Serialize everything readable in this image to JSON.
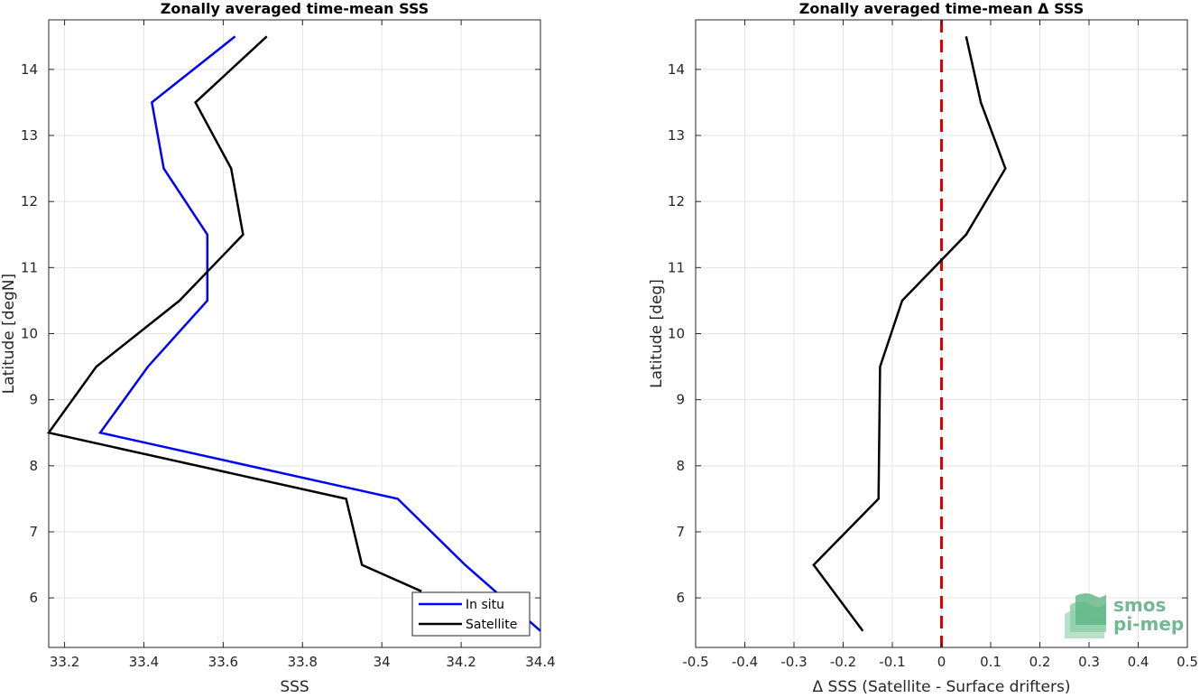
{
  "chart_data": [
    {
      "type": "line",
      "title": "Zonally averaged time-mean SSS",
      "xlabel": "SSS",
      "ylabel": "Latitude [degN]",
      "xlim": [
        33.16,
        34.4
      ],
      "ylim": [
        5.25,
        14.75
      ],
      "xticks": [
        33.2,
        33.4,
        33.6,
        33.8,
        34.0,
        34.2,
        34.4
      ],
      "xtick_labels": [
        "33.2",
        "33.4",
        "33.6",
        "33.8",
        "34",
        "34.2",
        "34.4"
      ],
      "yticks": [
        6,
        7,
        8,
        9,
        10,
        11,
        12,
        13,
        14
      ],
      "ytick_labels": [
        "6",
        "7",
        "8",
        "9",
        "10",
        "11",
        "12",
        "13",
        "14"
      ],
      "grid": true,
      "legend": "bottom-right",
      "series": [
        {
          "name": "In situ",
          "color": "#0000ff",
          "points": [
            [
              33.63,
              14.5
            ],
            [
              33.42,
              13.5
            ],
            [
              33.45,
              12.5
            ],
            [
              33.56,
              11.5
            ],
            [
              33.56,
              10.5
            ],
            [
              33.41,
              9.5
            ],
            [
              33.29,
              8.5
            ],
            [
              34.04,
              7.5
            ],
            [
              34.21,
              6.5
            ],
            [
              34.4,
              5.5
            ]
          ]
        },
        {
          "name": "Satellite",
          "color": "#000000",
          "points": [
            [
              33.71,
              14.5
            ],
            [
              33.53,
              13.5
            ],
            [
              33.62,
              12.5
            ],
            [
              33.65,
              11.5
            ],
            [
              33.49,
              10.5
            ],
            [
              33.28,
              9.5
            ],
            [
              33.16,
              8.5
            ],
            [
              33.91,
              7.5
            ],
            [
              33.95,
              6.5
            ],
            [
              34.1,
              6.1
            ]
          ]
        }
      ]
    },
    {
      "type": "line",
      "title": "Zonally averaged time-mean Δ SSS",
      "xlabel": "Δ SSS (Satellite - Surface drifters)",
      "ylabel": "Latitude [deg]",
      "xlim": [
        -0.5,
        0.5
      ],
      "ylim": [
        5.25,
        14.75
      ],
      "xticks": [
        -0.5,
        -0.4,
        -0.3,
        -0.2,
        -0.1,
        0,
        0.1,
        0.2,
        0.3,
        0.4,
        0.5
      ],
      "xtick_labels": [
        "-0.5",
        "-0.4",
        "-0.3",
        "-0.2",
        "-0.1",
        "0",
        "0.1",
        "0.2",
        "0.3",
        "0.4",
        "0.5"
      ],
      "yticks": [
        6,
        7,
        8,
        9,
        10,
        11,
        12,
        13,
        14
      ],
      "ytick_labels": [
        "6",
        "7",
        "8",
        "9",
        "10",
        "11",
        "12",
        "13",
        "14"
      ],
      "grid": true,
      "reference_line": {
        "x": 0,
        "color": "#e00000",
        "style": "dashed"
      },
      "series": [
        {
          "color": "#000000",
          "points": [
            [
              0.05,
              14.5
            ],
            [
              0.08,
              13.5
            ],
            [
              0.13,
              12.5
            ],
            [
              0.05,
              11.5
            ],
            [
              -0.08,
              10.5
            ],
            [
              -0.125,
              9.5
            ],
            [
              -0.128,
              7.5
            ],
            [
              -0.26,
              6.5
            ],
            [
              -0.16,
              5.5
            ]
          ]
        }
      ]
    }
  ],
  "logo": {
    "line1": "smos",
    "line2": "pi-mep"
  }
}
